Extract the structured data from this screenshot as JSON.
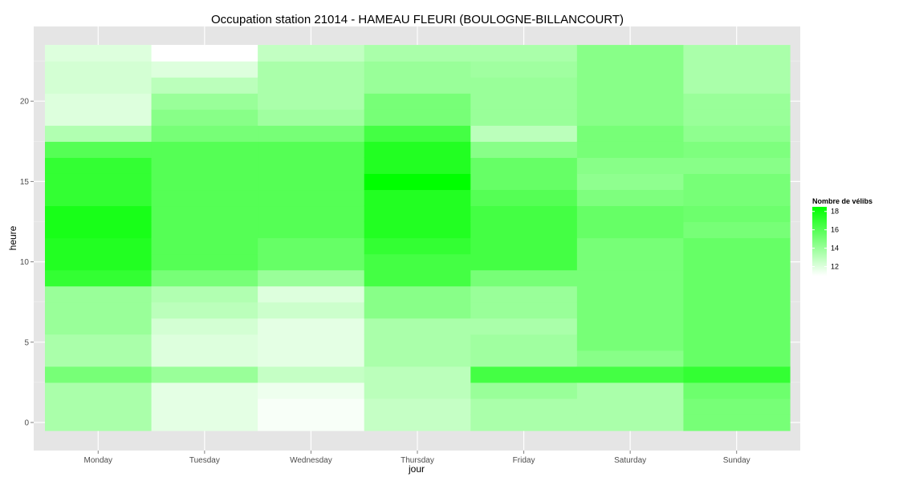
{
  "chart_data": {
    "type": "heatmap",
    "title": "Occupation station 21014 - HAMEAU FLEURI (BOULOGNE-BILLANCOURT)",
    "xlabel": "jour",
    "ylabel": "heure",
    "x_categories": [
      "Monday",
      "Tuesday",
      "Wednesday",
      "Thursday",
      "Friday",
      "Saturday",
      "Sunday"
    ],
    "y_range": [
      0,
      23
    ],
    "y_ticks": [
      0,
      5,
      10,
      15,
      20
    ],
    "color_scale": {
      "min": 11,
      "max": 18.5,
      "low_color": "#ffffff",
      "high_color": "#00ff00"
    },
    "legend": {
      "title": "Nombre de vélibs",
      "ticks": [
        12,
        14,
        16,
        18
      ],
      "position": "right"
    },
    "grid": true,
    "values_by_day": [
      {
        "day": "Monday",
        "hours": [
          13.5,
          13.5,
          13.5,
          15.0,
          13.5,
          13.5,
          14.0,
          14.0,
          14.0,
          17.0,
          17.5,
          17.5,
          17.8,
          17.8,
          17.0,
          17.0,
          17.0,
          16.0,
          13.3,
          12.0,
          12.0,
          12.3,
          12.3,
          12.0
        ]
      },
      {
        "day": "Tuesday",
        "hours": [
          11.8,
          11.8,
          11.8,
          14.0,
          12.0,
          12.0,
          12.3,
          13.0,
          13.3,
          15.0,
          16.0,
          16.0,
          16.0,
          16.0,
          16.0,
          16.0,
          16.0,
          16.0,
          15.0,
          14.5,
          14.0,
          13.0,
          12.0,
          11.0
        ]
      },
      {
        "day": "Wednesday",
        "hours": [
          11.2,
          11.2,
          11.5,
          12.7,
          11.8,
          11.8,
          11.8,
          12.5,
          12.0,
          14.0,
          15.5,
          15.5,
          16.0,
          16.0,
          16.0,
          16.0,
          16.0,
          16.0,
          15.0,
          13.8,
          13.5,
          13.5,
          13.5,
          12.8
        ]
      },
      {
        "day": "Thursday",
        "hours": [
          12.7,
          12.7,
          13.0,
          13.0,
          13.5,
          13.5,
          13.5,
          14.5,
          14.5,
          16.5,
          16.5,
          17.0,
          17.5,
          17.5,
          17.5,
          18.5,
          17.5,
          17.5,
          16.5,
          15.0,
          15.0,
          14.0,
          14.0,
          13.5
        ]
      },
      {
        "day": "Friday",
        "hours": [
          13.5,
          13.5,
          14.0,
          16.5,
          13.8,
          13.8,
          13.5,
          14.0,
          14.0,
          15.0,
          16.5,
          16.5,
          16.5,
          16.5,
          16.0,
          15.5,
          15.5,
          14.5,
          13.0,
          14.0,
          14.0,
          14.0,
          13.8,
          13.5
        ]
      },
      {
        "day": "Saturday",
        "hours": [
          13.5,
          13.5,
          13.5,
          16.5,
          14.5,
          15.0,
          15.0,
          15.0,
          15.0,
          15.0,
          15.0,
          15.0,
          15.5,
          15.5,
          14.8,
          14.3,
          14.5,
          15.0,
          15.0,
          14.5,
          14.5,
          14.5,
          14.5,
          14.5
        ]
      },
      {
        "day": "Sunday",
        "hours": [
          15.0,
          15.0,
          15.3,
          17.0,
          15.5,
          15.5,
          15.5,
          15.5,
          15.5,
          15.5,
          15.5,
          15.5,
          15.0,
          15.3,
          15.0,
          15.0,
          14.5,
          14.8,
          14.3,
          14.0,
          14.0,
          13.5,
          13.5,
          13.5
        ]
      }
    ]
  }
}
